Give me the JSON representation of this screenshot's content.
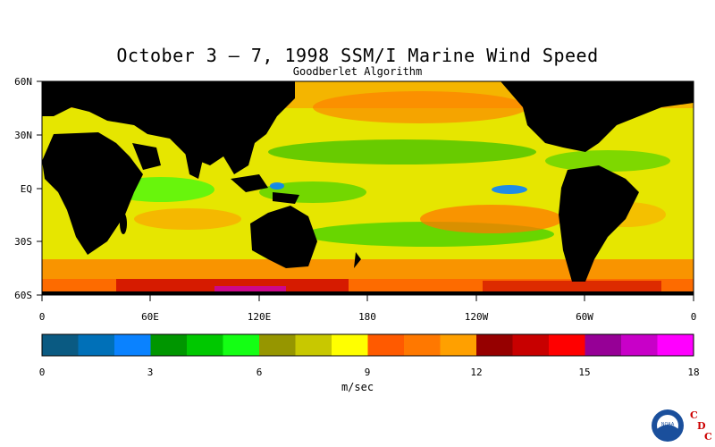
{
  "header": {
    "title": "October 3 – 7, 1998 SSM/I Marine Wind Speed",
    "subtitle": "Goodberlet Algorithm"
  },
  "map": {
    "lat_labels": [
      "60N",
      "30N",
      "EQ",
      "30S",
      "60S"
    ],
    "lon_labels": [
      "0",
      "60E",
      "120E",
      "180",
      "120W",
      "60W",
      "0"
    ],
    "land_color": "#000000",
    "background_field_color": "#e6e600"
  },
  "legend": {
    "tick_labels": [
      "0",
      "3",
      "6",
      "9",
      "12",
      "15",
      "18"
    ],
    "units": "m/sec",
    "colors": [
      "#0a5a82",
      "#0070b8",
      "#0a82ff",
      "#009600",
      "#00c800",
      "#14ff14",
      "#969600",
      "#c8c800",
      "#ffff00",
      "#ff5a00",
      "#ff7800",
      "#ffa000",
      "#960000",
      "#c80000",
      "#ff0000",
      "#960096",
      "#c800c8",
      "#ff00ff"
    ]
  },
  "logo": {
    "org_name": "NOAA",
    "letters": [
      "C",
      "D",
      "C"
    ]
  }
}
